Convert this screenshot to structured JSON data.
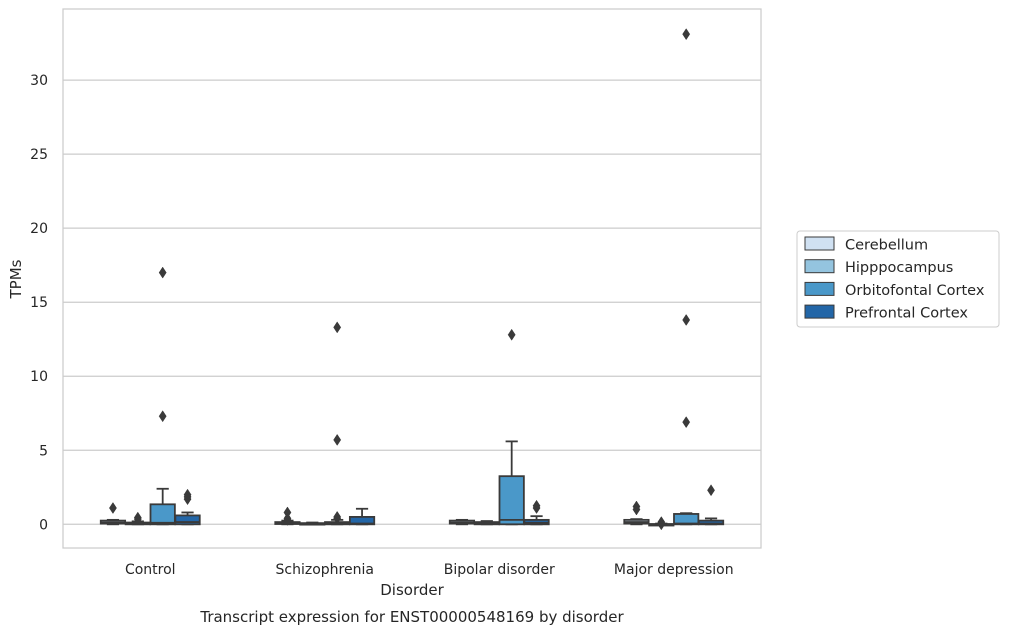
{
  "chart_data": {
    "type": "box",
    "caption": "Transcript expression for ENST00000548169 by disorder",
    "xlabel": "Disorder",
    "ylabel": "TPMs",
    "ylim": [
      -1.6,
      34.8
    ],
    "yticks": [
      0,
      5,
      10,
      15,
      20,
      25,
      30
    ],
    "grid": true,
    "legend_position": "right",
    "categories": [
      "Control",
      "Schizophrenia",
      "Bipolar disorder",
      "Major depression"
    ],
    "series": [
      {
        "name": "Cerebellum",
        "color": "#d0e1f2",
        "boxes": [
          {
            "whislo": 0,
            "q1": 0.05,
            "med": 0.12,
            "q3": 0.25,
            "whishi": 0.3,
            "fliers": [
              1.1
            ]
          },
          {
            "whislo": 0,
            "q1": 0.02,
            "med": 0.06,
            "q3": 0.15,
            "whishi": 0.25,
            "fliers": [
              0.8,
              0.4,
              0.3
            ]
          },
          {
            "whislo": 0,
            "q1": 0.05,
            "med": 0.12,
            "q3": 0.25,
            "whishi": 0.3,
            "fliers": []
          },
          {
            "whislo": 0,
            "q1": 0.05,
            "med": 0.15,
            "q3": 0.3,
            "whishi": 0.35,
            "fliers": [
              1.2,
              1.0
            ]
          }
        ]
      },
      {
        "name": "Hipppocampus",
        "color": "#94c4df",
        "boxes": [
          {
            "whislo": 0,
            "q1": 0.0,
            "med": 0.03,
            "q3": 0.12,
            "whishi": 0.2,
            "fliers": [
              0.45,
              0.35
            ]
          },
          {
            "whislo": 0,
            "q1": 0.0,
            "med": 0.02,
            "q3": 0.08,
            "whishi": 0.12,
            "fliers": []
          },
          {
            "whislo": 0,
            "q1": 0.0,
            "med": 0.04,
            "q3": 0.15,
            "whishi": 0.22,
            "fliers": []
          },
          {
            "whislo": 0,
            "q1": 0.0,
            "med": 0.0,
            "q3": 0.02,
            "whishi": 0.05,
            "fliers": [
              0.15,
              0.0
            ]
          }
        ]
      },
      {
        "name": "Orbitofontal Cortex",
        "color": "#4a98c9",
        "boxes": [
          {
            "whislo": 0,
            "q1": 0.0,
            "med": 0.1,
            "q3": 1.35,
            "whishi": 2.4,
            "fliers": [
              7.3,
              17.0
            ]
          },
          {
            "whislo": 0,
            "q1": 0.0,
            "med": 0.05,
            "q3": 0.15,
            "whishi": 0.3,
            "fliers": [
              0.4,
              0.5,
              5.7,
              13.3
            ]
          },
          {
            "whislo": 0,
            "q1": 0.0,
            "med": 0.3,
            "q3": 3.25,
            "whishi": 5.6,
            "fliers": [
              12.8
            ]
          },
          {
            "whislo": 0,
            "q1": 0.0,
            "med": 0.05,
            "q3": 0.7,
            "whishi": 0.75,
            "fliers": [
              6.9,
              13.8,
              33.1
            ]
          }
        ]
      },
      {
        "name": "Prefrontal Cortex",
        "color": "#2366a7",
        "boxes": [
          {
            "whislo": 0,
            "q1": 0.0,
            "med": 0.15,
            "q3": 0.6,
            "whishi": 0.8,
            "fliers": [
              1.7,
              1.85,
              2.0
            ]
          },
          {
            "whislo": 0,
            "q1": 0.0,
            "med": 0.05,
            "q3": 0.5,
            "whishi": 1.05,
            "fliers": []
          },
          {
            "whislo": 0,
            "q1": 0.0,
            "med": 0.1,
            "q3": 0.3,
            "whishi": 0.55,
            "fliers": [
              1.1,
              1.25
            ]
          },
          {
            "whislo": 0,
            "q1": 0.0,
            "med": 0.05,
            "q3": 0.25,
            "whishi": 0.4,
            "fliers": [
              2.3
            ]
          }
        ]
      }
    ]
  }
}
